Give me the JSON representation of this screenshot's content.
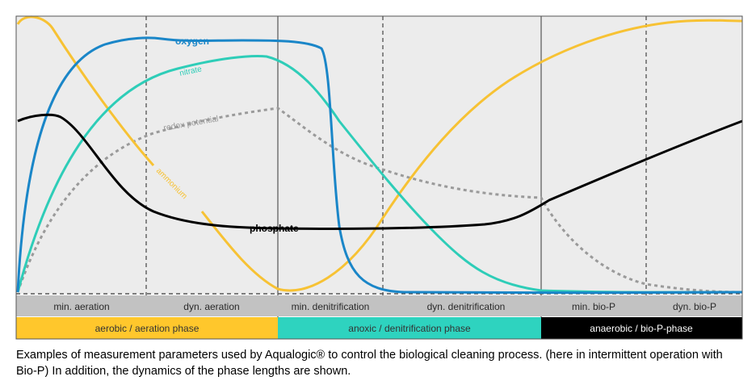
{
  "colors": {
    "oxygen": "#1a86c8",
    "nitrate": "#2ecdb8",
    "ammonium": "#f7c234",
    "redox": "#9a9a9a",
    "phosphate": "#000000",
    "plot_bg": "#ececec",
    "segment_bar": "#c2c2c2",
    "aerobic": "#ffc72c",
    "anoxic": "#2ed3bf",
    "anaerobic": "#000000"
  },
  "curves": {
    "oxygen": "oxygen",
    "nitrate": "nitrate",
    "redox": "redox potential",
    "ammonium": "ammonium",
    "phosphate": "phosphate"
  },
  "segments": [
    "min. aeration",
    "dyn. aeration",
    "min. denitrification",
    "dyn. denitrification",
    "min. bio-P",
    "dyn. bio-P"
  ],
  "phases": [
    "aerobic / aeration phase",
    "anoxic / denitrification phase",
    "anaerobic / bio-P-phase"
  ],
  "caption": "Examples of measurement parameters used by Aqualogic® to control the biological cleaning process. (here in intermittent operation with Bio-P) In addition, the dynamics of the phase lengths are shown."
}
